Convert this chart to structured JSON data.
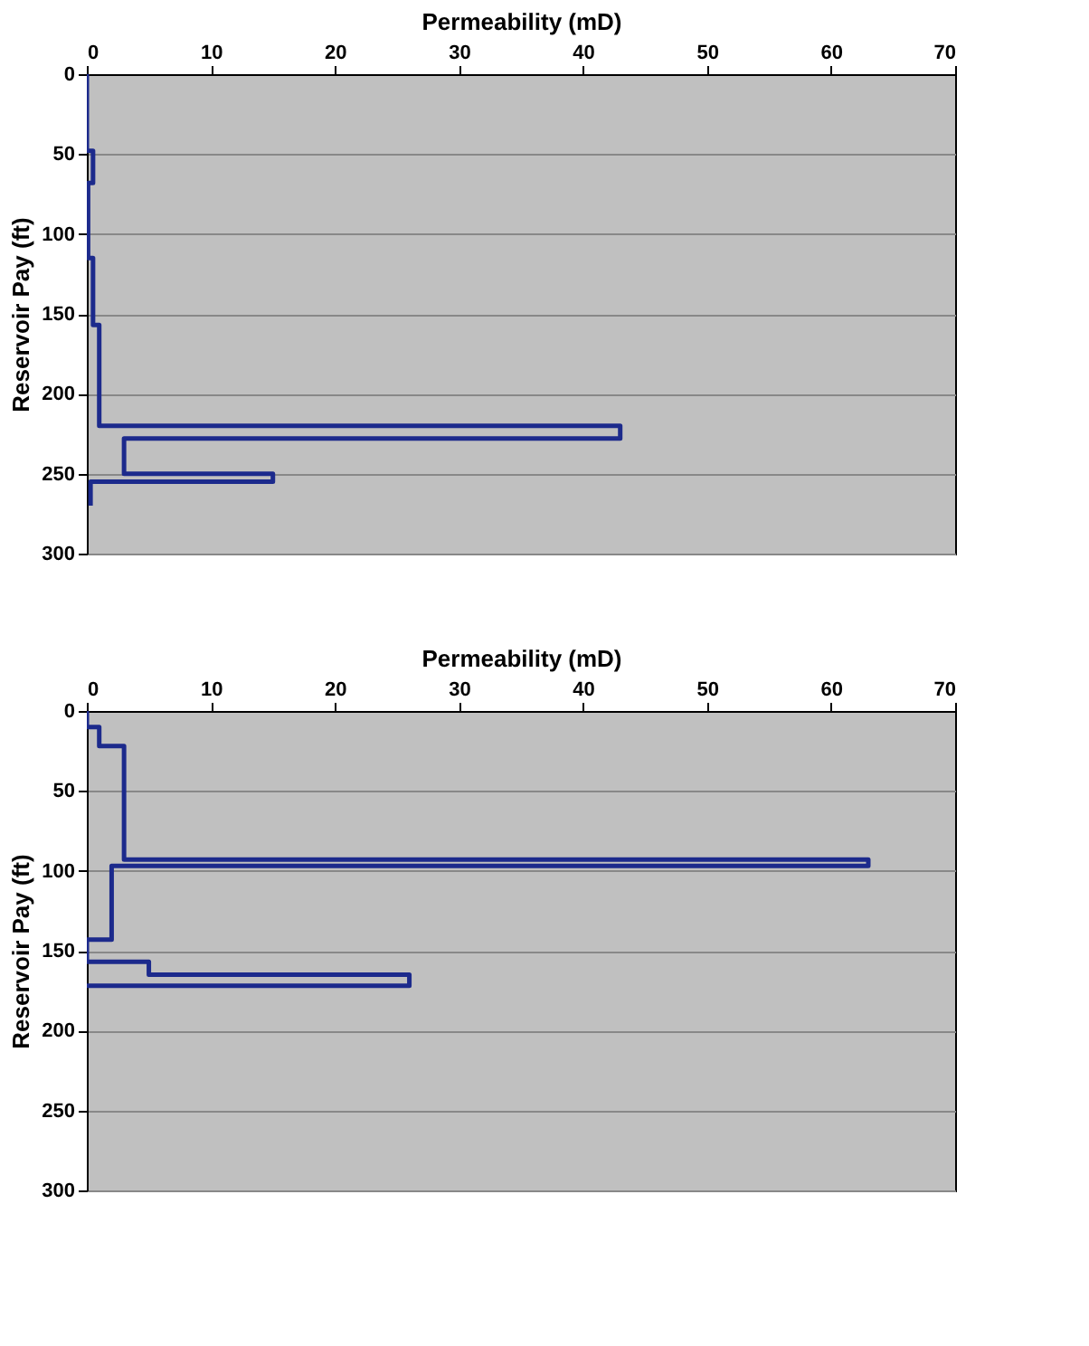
{
  "chart_data": [
    {
      "type": "line",
      "xlabel": "Permeability (mD)",
      "ylabel": "Reservoir Pay (ft)",
      "xlim": [
        0,
        70
      ],
      "xticks": [
        0,
        10,
        20,
        30,
        40,
        50,
        60,
        70
      ],
      "ylim": [
        300,
        0
      ],
      "yticks": [
        0,
        50,
        100,
        150,
        200,
        250,
        300
      ],
      "grid": "y",
      "marker": "none",
      "line_style": "solid",
      "series": [
        {
          "color": "#1c2a8c",
          "x": [
            0,
            0,
            0.5,
            0.5,
            0.1,
            0.1,
            0.5,
            0.5,
            1,
            1,
            43,
            43,
            3,
            3,
            15,
            15,
            0.3,
            0.3
          ],
          "values": [
            0,
            48,
            48,
            68,
            68,
            115,
            115,
            157,
            157,
            220,
            220,
            228,
            228,
            250,
            250,
            255,
            255,
            270
          ]
        }
      ]
    },
    {
      "type": "line",
      "xlabel": "Permeability (mD)",
      "ylabel": "Reservoir Pay (ft)",
      "xlim": [
        0,
        70
      ],
      "xticks": [
        0,
        10,
        20,
        30,
        40,
        50,
        60,
        70
      ],
      "ylim": [
        300,
        0
      ],
      "yticks": [
        0,
        50,
        100,
        150,
        200,
        250,
        300
      ],
      "grid": "y",
      "marker": "none",
      "line_style": "solid",
      "series": [
        {
          "color": "#1c2a8c",
          "x": [
            0,
            0,
            1,
            1,
            3,
            3,
            63,
            63,
            2,
            2,
            0,
            0,
            5,
            5,
            26,
            26,
            0
          ],
          "values": [
            0,
            10,
            10,
            22,
            22,
            93,
            93,
            97,
            97,
            143,
            143,
            157,
            157,
            165,
            165,
            172,
            172
          ]
        }
      ]
    }
  ]
}
